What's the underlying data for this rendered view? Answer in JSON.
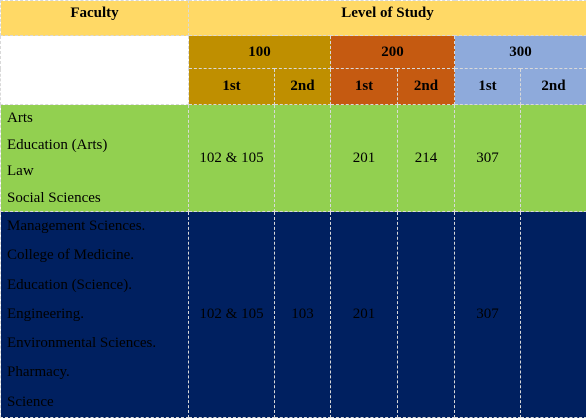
{
  "header": {
    "faculty_label": "Faculty",
    "level_label": "Level of Study"
  },
  "levels": [
    {
      "label": "100",
      "color": "#bf8f00"
    },
    {
      "label": "200",
      "color": "#c55a11"
    },
    {
      "label": "300",
      "color": "#8eaadb"
    }
  ],
  "semesters": [
    "1st",
    "2nd",
    "1st",
    "2nd",
    "1st",
    "2nd"
  ],
  "groups": [
    {
      "color": "#92d050",
      "faculties": [
        "Arts",
        "Education (Arts)",
        "Law",
        "Social Sciences"
      ],
      "cells": [
        "102 & 105",
        "",
        "201",
        "214",
        "307",
        ""
      ]
    },
    {
      "color": "#002060",
      "faculties": [
        "Management Sciences.",
        "College of Medicine.",
        "Education (Science).",
        "Engineering.",
        "Environmental Sciences.",
        "Pharmacy.",
        "Science"
      ],
      "cells": [
        "102 & 105",
        "103",
        "201",
        "",
        "307",
        ""
      ]
    }
  ],
  "colors": {
    "header": "#ffd966",
    "header_blank": "#ffffff"
  }
}
